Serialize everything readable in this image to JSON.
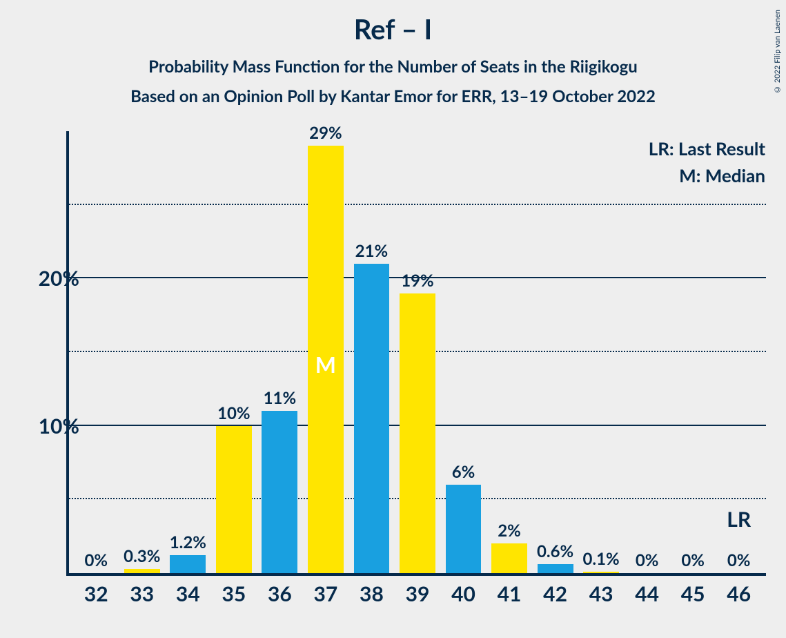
{
  "title": "Ref – I",
  "subtitle1": "Probability Mass Function for the Number of Seats in the Riigikogu",
  "subtitle2": "Based on an Opinion Poll by Kantar Emor for ERR, 13–19 October 2022",
  "copyright": "© 2022 Filip van Laenen",
  "legend": {
    "lr": "LR: Last Result",
    "m": "M: Median"
  },
  "lr_label": "LR",
  "median_label": "M",
  "chart": {
    "type": "bar",
    "ymax": 30,
    "ytick_major": [
      10,
      20
    ],
    "ytick_minor": [
      5,
      15,
      25
    ],
    "y_labels": {
      "10": "10%",
      "20": "20%"
    },
    "colors": {
      "blue": "#19a0e0",
      "yellow": "#ffe500",
      "axis": "#062a4b",
      "bg": "#eeeeee"
    },
    "median_index": 5,
    "lr_category": "46",
    "categories": [
      "32",
      "33",
      "34",
      "35",
      "36",
      "37",
      "38",
      "39",
      "40",
      "41",
      "42",
      "43",
      "44",
      "45",
      "46"
    ],
    "values": [
      0,
      0.3,
      1.2,
      10,
      11,
      29,
      21,
      19,
      6,
      2,
      0.6,
      0.1,
      0,
      0,
      0
    ],
    "value_labels": [
      "0%",
      "0.3%",
      "1.2%",
      "10%",
      "11%",
      "29%",
      "21%",
      "19%",
      "6%",
      "2%",
      "0.6%",
      "0.1%",
      "0%",
      "0%",
      "0%"
    ],
    "bar_color_pattern": [
      "blue",
      "yellow",
      "blue",
      "yellow",
      "blue",
      "yellow",
      "blue",
      "yellow",
      "blue",
      "yellow",
      "blue",
      "yellow",
      "blue",
      "yellow",
      "blue"
    ]
  }
}
